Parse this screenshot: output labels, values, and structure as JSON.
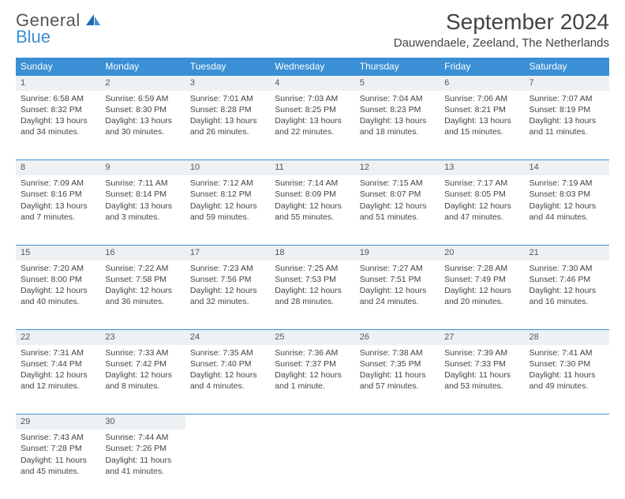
{
  "logo": {
    "line1": "General",
    "line2": "Blue"
  },
  "title": "September 2024",
  "location": "Dauwendaele, Zeeland, The Netherlands",
  "colors": {
    "header_bg": "#3b8fd4",
    "daynum_bg": "#eef1f4",
    "border": "#3b8fd4",
    "text": "#444444",
    "logo_blue": "#3b8fd4"
  },
  "weekdays": [
    "Sunday",
    "Monday",
    "Tuesday",
    "Wednesday",
    "Thursday",
    "Friday",
    "Saturday"
  ],
  "weeks": [
    {
      "nums": [
        "1",
        "2",
        "3",
        "4",
        "5",
        "6",
        "7"
      ],
      "cells": [
        {
          "sunrise": "Sunrise: 6:58 AM",
          "sunset": "Sunset: 8:32 PM",
          "dl1": "Daylight: 13 hours",
          "dl2": "and 34 minutes."
        },
        {
          "sunrise": "Sunrise: 6:59 AM",
          "sunset": "Sunset: 8:30 PM",
          "dl1": "Daylight: 13 hours",
          "dl2": "and 30 minutes."
        },
        {
          "sunrise": "Sunrise: 7:01 AM",
          "sunset": "Sunset: 8:28 PM",
          "dl1": "Daylight: 13 hours",
          "dl2": "and 26 minutes."
        },
        {
          "sunrise": "Sunrise: 7:03 AM",
          "sunset": "Sunset: 8:25 PM",
          "dl1": "Daylight: 13 hours",
          "dl2": "and 22 minutes."
        },
        {
          "sunrise": "Sunrise: 7:04 AM",
          "sunset": "Sunset: 8:23 PM",
          "dl1": "Daylight: 13 hours",
          "dl2": "and 18 minutes."
        },
        {
          "sunrise": "Sunrise: 7:06 AM",
          "sunset": "Sunset: 8:21 PM",
          "dl1": "Daylight: 13 hours",
          "dl2": "and 15 minutes."
        },
        {
          "sunrise": "Sunrise: 7:07 AM",
          "sunset": "Sunset: 8:19 PM",
          "dl1": "Daylight: 13 hours",
          "dl2": "and 11 minutes."
        }
      ]
    },
    {
      "nums": [
        "8",
        "9",
        "10",
        "11",
        "12",
        "13",
        "14"
      ],
      "cells": [
        {
          "sunrise": "Sunrise: 7:09 AM",
          "sunset": "Sunset: 8:16 PM",
          "dl1": "Daylight: 13 hours",
          "dl2": "and 7 minutes."
        },
        {
          "sunrise": "Sunrise: 7:11 AM",
          "sunset": "Sunset: 8:14 PM",
          "dl1": "Daylight: 13 hours",
          "dl2": "and 3 minutes."
        },
        {
          "sunrise": "Sunrise: 7:12 AM",
          "sunset": "Sunset: 8:12 PM",
          "dl1": "Daylight: 12 hours",
          "dl2": "and 59 minutes."
        },
        {
          "sunrise": "Sunrise: 7:14 AM",
          "sunset": "Sunset: 8:09 PM",
          "dl1": "Daylight: 12 hours",
          "dl2": "and 55 minutes."
        },
        {
          "sunrise": "Sunrise: 7:15 AM",
          "sunset": "Sunset: 8:07 PM",
          "dl1": "Daylight: 12 hours",
          "dl2": "and 51 minutes."
        },
        {
          "sunrise": "Sunrise: 7:17 AM",
          "sunset": "Sunset: 8:05 PM",
          "dl1": "Daylight: 12 hours",
          "dl2": "and 47 minutes."
        },
        {
          "sunrise": "Sunrise: 7:19 AM",
          "sunset": "Sunset: 8:03 PM",
          "dl1": "Daylight: 12 hours",
          "dl2": "and 44 minutes."
        }
      ]
    },
    {
      "nums": [
        "15",
        "16",
        "17",
        "18",
        "19",
        "20",
        "21"
      ],
      "cells": [
        {
          "sunrise": "Sunrise: 7:20 AM",
          "sunset": "Sunset: 8:00 PM",
          "dl1": "Daylight: 12 hours",
          "dl2": "and 40 minutes."
        },
        {
          "sunrise": "Sunrise: 7:22 AM",
          "sunset": "Sunset: 7:58 PM",
          "dl1": "Daylight: 12 hours",
          "dl2": "and 36 minutes."
        },
        {
          "sunrise": "Sunrise: 7:23 AM",
          "sunset": "Sunset: 7:56 PM",
          "dl1": "Daylight: 12 hours",
          "dl2": "and 32 minutes."
        },
        {
          "sunrise": "Sunrise: 7:25 AM",
          "sunset": "Sunset: 7:53 PM",
          "dl1": "Daylight: 12 hours",
          "dl2": "and 28 minutes."
        },
        {
          "sunrise": "Sunrise: 7:27 AM",
          "sunset": "Sunset: 7:51 PM",
          "dl1": "Daylight: 12 hours",
          "dl2": "and 24 minutes."
        },
        {
          "sunrise": "Sunrise: 7:28 AM",
          "sunset": "Sunset: 7:49 PM",
          "dl1": "Daylight: 12 hours",
          "dl2": "and 20 minutes."
        },
        {
          "sunrise": "Sunrise: 7:30 AM",
          "sunset": "Sunset: 7:46 PM",
          "dl1": "Daylight: 12 hours",
          "dl2": "and 16 minutes."
        }
      ]
    },
    {
      "nums": [
        "22",
        "23",
        "24",
        "25",
        "26",
        "27",
        "28"
      ],
      "cells": [
        {
          "sunrise": "Sunrise: 7:31 AM",
          "sunset": "Sunset: 7:44 PM",
          "dl1": "Daylight: 12 hours",
          "dl2": "and 12 minutes."
        },
        {
          "sunrise": "Sunrise: 7:33 AM",
          "sunset": "Sunset: 7:42 PM",
          "dl1": "Daylight: 12 hours",
          "dl2": "and 8 minutes."
        },
        {
          "sunrise": "Sunrise: 7:35 AM",
          "sunset": "Sunset: 7:40 PM",
          "dl1": "Daylight: 12 hours",
          "dl2": "and 4 minutes."
        },
        {
          "sunrise": "Sunrise: 7:36 AM",
          "sunset": "Sunset: 7:37 PM",
          "dl1": "Daylight: 12 hours",
          "dl2": "and 1 minute."
        },
        {
          "sunrise": "Sunrise: 7:38 AM",
          "sunset": "Sunset: 7:35 PM",
          "dl1": "Daylight: 11 hours",
          "dl2": "and 57 minutes."
        },
        {
          "sunrise": "Sunrise: 7:39 AM",
          "sunset": "Sunset: 7:33 PM",
          "dl1": "Daylight: 11 hours",
          "dl2": "and 53 minutes."
        },
        {
          "sunrise": "Sunrise: 7:41 AM",
          "sunset": "Sunset: 7:30 PM",
          "dl1": "Daylight: 11 hours",
          "dl2": "and 49 minutes."
        }
      ]
    },
    {
      "nums": [
        "29",
        "30",
        "",
        "",
        "",
        "",
        ""
      ],
      "cells": [
        {
          "sunrise": "Sunrise: 7:43 AM",
          "sunset": "Sunset: 7:28 PM",
          "dl1": "Daylight: 11 hours",
          "dl2": "and 45 minutes."
        },
        {
          "sunrise": "Sunrise: 7:44 AM",
          "sunset": "Sunset: 7:26 PM",
          "dl1": "Daylight: 11 hours",
          "dl2": "and 41 minutes."
        },
        {
          "sunrise": "",
          "sunset": "",
          "dl1": "",
          "dl2": ""
        },
        {
          "sunrise": "",
          "sunset": "",
          "dl1": "",
          "dl2": ""
        },
        {
          "sunrise": "",
          "sunset": "",
          "dl1": "",
          "dl2": ""
        },
        {
          "sunrise": "",
          "sunset": "",
          "dl1": "",
          "dl2": ""
        },
        {
          "sunrise": "",
          "sunset": "",
          "dl1": "",
          "dl2": ""
        }
      ]
    }
  ]
}
